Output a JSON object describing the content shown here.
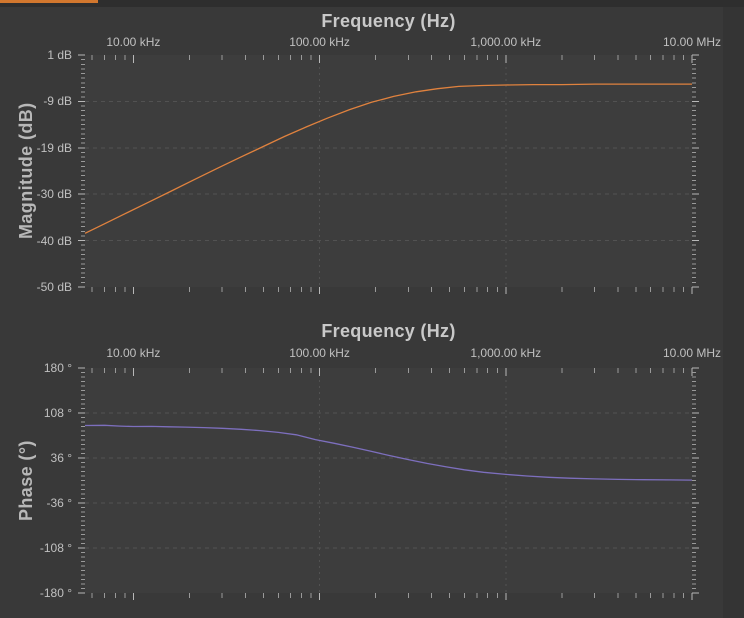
{
  "window": {
    "background": "#393939",
    "plot_background": "#3d3d3d",
    "top_strip_color": "#2e2e2e",
    "accent_bar_color": "#d2772e",
    "grid_color": "#525252",
    "tick_color": "#9a9a9a",
    "major_tick_color": "#b8b8b8",
    "label_color": "#c0c0c0",
    "title_color": "#c9c9c9"
  },
  "chart_data": [
    {
      "id": "magnitude",
      "type": "line",
      "title": "Frequency (Hz)",
      "xlabel": "Frequency (Hz)",
      "ylabel": "Magnitude (dB)",
      "x_scale": "log",
      "x_range_hz": [
        5500,
        10000000
      ],
      "ylim": [
        -50,
        1
      ],
      "grid": true,
      "legend": "none",
      "x_ticks": [
        {
          "hz": 10000,
          "label": "10.00 kHz"
        },
        {
          "hz": 100000,
          "label": "100.00 kHz"
        },
        {
          "hz": 1000000,
          "label": "1,000.00 kHz"
        },
        {
          "hz": 10000000,
          "label": "10.00 MHz"
        }
      ],
      "y_ticks": [
        {
          "value": 1.0,
          "label": "1 dB"
        },
        {
          "value": -9.2,
          "label": "-9 dB"
        },
        {
          "value": -19.4,
          "label": "-19 dB"
        },
        {
          "value": -29.6,
          "label": "-30 dB"
        },
        {
          "value": -39.8,
          "label": "-40 dB"
        },
        {
          "value": -50.0,
          "label": "-50 dB"
        }
      ],
      "v_gridlines_hz": [
        100000,
        1000000
      ],
      "line_color": "#e0823e",
      "series": [
        {
          "name": "magnitude",
          "points": [
            [
              5500,
              -38.2
            ],
            [
              7000,
              -36.1
            ],
            [
              9000,
              -33.9
            ],
            [
              12000,
              -31.4
            ],
            [
              16000,
              -28.9
            ],
            [
              21000,
              -26.5
            ],
            [
              28000,
              -24.0
            ],
            [
              37000,
              -21.6
            ],
            [
              50000,
              -19.1
            ],
            [
              65000,
              -16.9
            ],
            [
              85000,
              -14.8
            ],
            [
              110000,
              -12.9
            ],
            [
              145000,
              -11.0
            ],
            [
              190000,
              -9.4
            ],
            [
              250000,
              -8.1
            ],
            [
              330000,
              -7.1
            ],
            [
              430000,
              -6.4
            ],
            [
              560000,
              -5.9
            ],
            [
              750000,
              -5.7
            ],
            [
              1000000,
              -5.6
            ],
            [
              1400000,
              -5.5
            ],
            [
              2000000,
              -5.5
            ],
            [
              3000000,
              -5.4
            ],
            [
              4500000,
              -5.4
            ],
            [
              7000000,
              -5.4
            ],
            [
              10000000,
              -5.4
            ]
          ]
        }
      ]
    },
    {
      "id": "phase",
      "type": "line",
      "title": "Frequency (Hz)",
      "xlabel": "Frequency (Hz)",
      "ylabel": "Phase (°)",
      "x_scale": "log",
      "x_range_hz": [
        5500,
        10000000
      ],
      "ylim": [
        -180,
        180
      ],
      "grid": true,
      "legend": "none",
      "x_ticks": [
        {
          "hz": 10000,
          "label": "10.00 kHz"
        },
        {
          "hz": 100000,
          "label": "100.00 kHz"
        },
        {
          "hz": 1000000,
          "label": "1,000.00 kHz"
        },
        {
          "hz": 10000000,
          "label": "10.00 MHz"
        }
      ],
      "y_ticks": [
        {
          "value": 180,
          "label": "180 °"
        },
        {
          "value": 108,
          "label": "108 °"
        },
        {
          "value": 36,
          "label": "36 °"
        },
        {
          "value": -36,
          "label": "-36 °"
        },
        {
          "value": -108,
          "label": "-108 °"
        },
        {
          "value": -180,
          "label": "-180 °"
        }
      ],
      "v_gridlines_hz": [
        100000,
        1000000
      ],
      "line_color": "#7d6fbe",
      "series": [
        {
          "name": "phase",
          "points": [
            [
              5500,
              88.0
            ],
            [
              7000,
              88.4
            ],
            [
              8500,
              87.1
            ],
            [
              10000,
              86.4
            ],
            [
              12500,
              86.6
            ],
            [
              15500,
              86.0
            ],
            [
              19000,
              85.4
            ],
            [
              24000,
              84.6
            ],
            [
              30000,
              83.6
            ],
            [
              38000,
              82.0
            ],
            [
              48000,
              79.8
            ],
            [
              60000,
              76.9
            ],
            [
              75000,
              73.2
            ],
            [
              95000,
              65.5
            ],
            [
              120000,
              59.5
            ],
            [
              150000,
              53.5
            ],
            [
              190000,
              46.5
            ],
            [
              240000,
              39.5
            ],
            [
              300000,
              33.5
            ],
            [
              380000,
              27.2
            ],
            [
              480000,
              21.8
            ],
            [
              600000,
              17.2
            ],
            [
              760000,
              13.2
            ],
            [
              1000000,
              9.8
            ],
            [
              1300000,
              7.2
            ],
            [
              1700000,
              5.2
            ],
            [
              2200000,
              3.7
            ],
            [
              3000000,
              2.6
            ],
            [
              4000000,
              1.8
            ],
            [
              5500000,
              1.3
            ],
            [
              7500000,
              0.9
            ],
            [
              10000000,
              0.7
            ]
          ]
        }
      ]
    }
  ]
}
